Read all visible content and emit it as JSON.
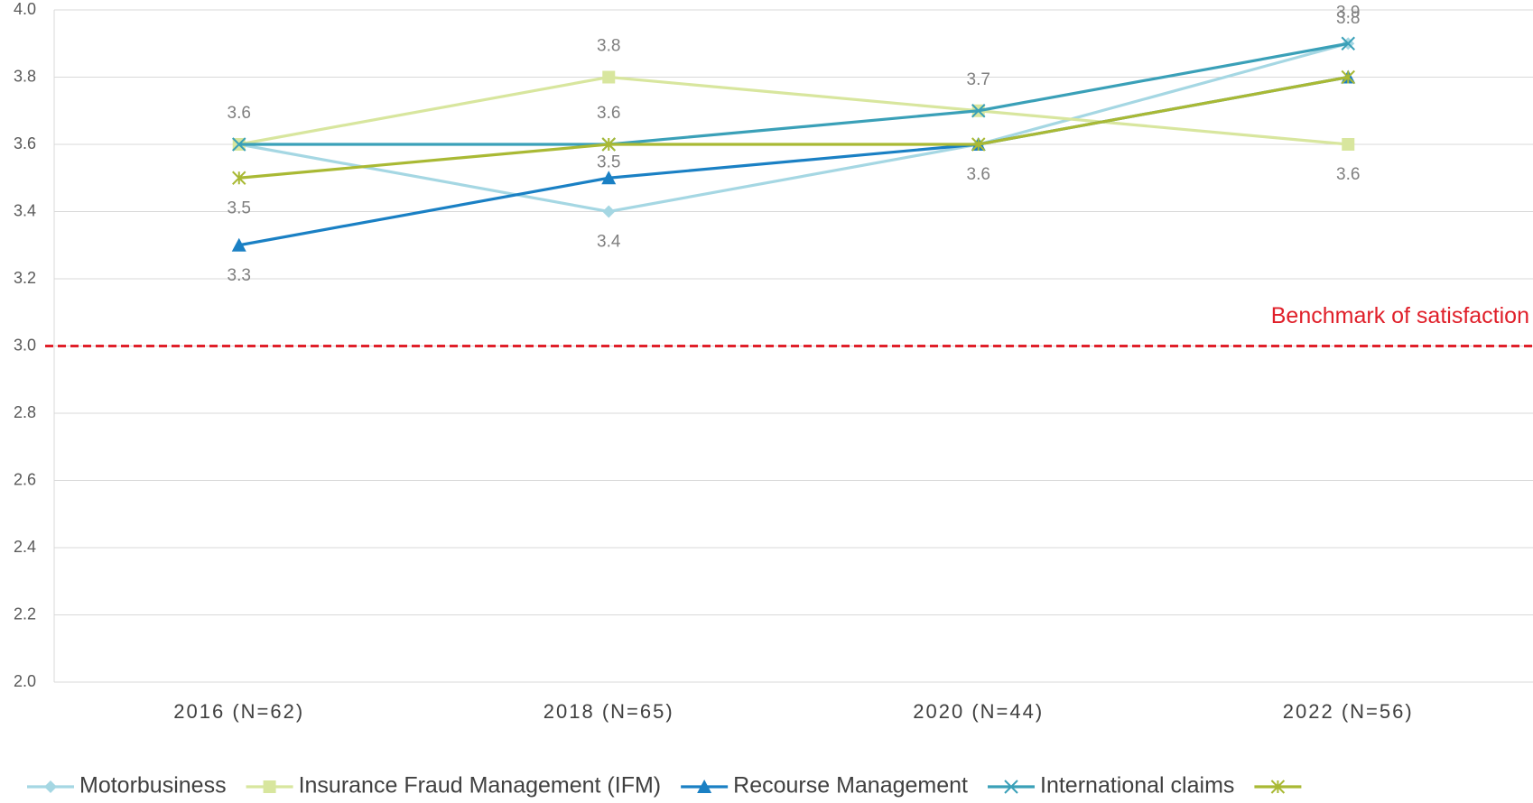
{
  "chart_data": {
    "type": "line",
    "categories": [
      "2016 (N=62)",
      "2018 (N=65)",
      "2020 (N=44)",
      "2022 (N=56)"
    ],
    "ylim": [
      2.0,
      4.0
    ],
    "yticks": [
      {
        "value": 2.0,
        "label": "2.0"
      },
      2.2,
      2.4,
      2.6,
      2.8,
      {
        "value": 3.0,
        "label": "3.0"
      },
      3.2,
      3.4,
      3.6,
      3.8,
      {
        "value": 4.0,
        "label": "4.0"
      }
    ],
    "grid": true,
    "legend": "bottom",
    "reference_line": {
      "value": 3.0,
      "label": "Benchmark of satisfaction",
      "color": "#e0202a"
    },
    "series": [
      {
        "name": "Motorbusiness",
        "color": "#a5d7e3",
        "marker": "diamond",
        "values": [
          3.6,
          3.4,
          3.6,
          3.9
        ]
      },
      {
        "name": "Insurance Fraud Management (IFM)",
        "color": "#d8e69e",
        "marker": "square",
        "values": [
          3.6,
          3.8,
          3.7,
          3.6
        ]
      },
      {
        "name": "Recourse Management",
        "color": "#1a80c4",
        "marker": "triangle",
        "values": [
          3.3,
          3.5,
          3.6,
          3.8
        ]
      },
      {
        "name": "International claims",
        "color": "#3aa0b8",
        "marker": "x",
        "values": [
          3.6,
          3.6,
          3.7,
          3.9
        ]
      },
      {
        "color": "#a9b934",
        "marker": "star",
        "values": [
          3.5,
          3.6,
          3.6,
          3.8
        ]
      }
    ]
  }
}
